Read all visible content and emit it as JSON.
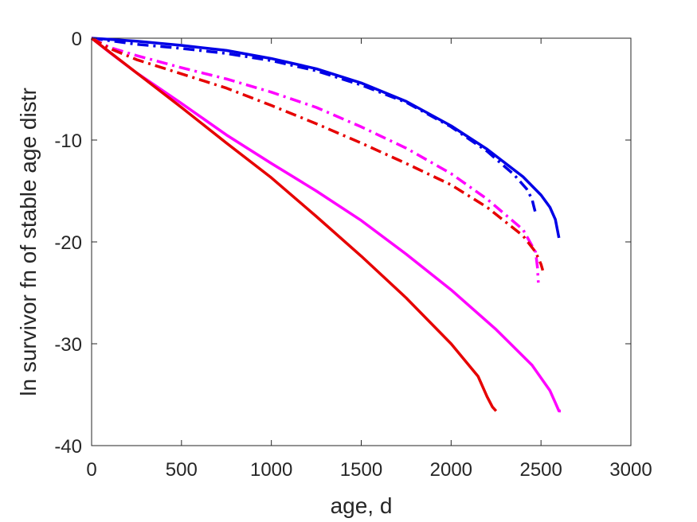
{
  "chart_data": {
    "type": "line",
    "title": "",
    "xlabel": "age, d",
    "ylabel": "ln survivor fn of stable age distr",
    "xlim": [
      0,
      3000
    ],
    "ylim": [
      -40,
      0
    ],
    "xticks": [
      0,
      500,
      1000,
      1500,
      2000,
      2500,
      3000
    ],
    "yticks": [
      0,
      -10,
      -20,
      -30,
      -40
    ],
    "xtick_labels": [
      "0",
      "500",
      "1000",
      "1500",
      "2000",
      "2500",
      "3000"
    ],
    "ytick_labels": [
      "0",
      "-10",
      "-20",
      "-30",
      "-40"
    ],
    "grid": false,
    "legend": "none",
    "series": [
      {
        "color": "#0000e6",
        "style": "solid",
        "x": [
          0,
          250,
          500,
          750,
          1000,
          1250,
          1500,
          1750,
          2000,
          2200,
          2400,
          2500,
          2550,
          2580,
          2600
        ],
        "y": [
          0,
          -0.3,
          -0.7,
          -1.2,
          -2.0,
          -3.0,
          -4.4,
          -6.2,
          -8.6,
          -10.9,
          -13.6,
          -15.4,
          -16.6,
          -17.8,
          -19.6
        ]
      },
      {
        "color": "#0000e6",
        "style": "dashdot",
        "x": [
          0,
          250,
          500,
          750,
          1000,
          1250,
          1500,
          1750,
          2000,
          2200,
          2350,
          2420,
          2450,
          2460,
          2470
        ],
        "y": [
          0,
          -0.6,
          -1.0,
          -1.5,
          -2.2,
          -3.2,
          -4.6,
          -6.3,
          -8.7,
          -11.1,
          -13.4,
          -14.8,
          -15.8,
          -16.5,
          -17.2
        ]
      },
      {
        "color": "#ff00ff",
        "style": "dashdot",
        "x": [
          0,
          100,
          250,
          500,
          750,
          1000,
          1250,
          1500,
          1750,
          2000,
          2200,
          2400,
          2470,
          2480,
          2485
        ],
        "y": [
          0,
          -0.9,
          -1.7,
          -2.9,
          -4.0,
          -5.3,
          -6.8,
          -8.7,
          -10.8,
          -13.3,
          -15.8,
          -18.8,
          -21.0,
          -22.5,
          -24.0
        ]
      },
      {
        "color": "#e60000",
        "style": "dashdot",
        "x": [
          0,
          100,
          250,
          500,
          750,
          1000,
          1250,
          1500,
          1750,
          2000,
          2200,
          2400,
          2470,
          2500,
          2510
        ],
        "y": [
          0,
          -1.0,
          -2.1,
          -3.5,
          -4.9,
          -6.6,
          -8.4,
          -10.3,
          -12.3,
          -14.4,
          -16.6,
          -19.4,
          -21.0,
          -22.2,
          -22.8
        ]
      },
      {
        "color": "#ff00ff",
        "style": "solid",
        "x": [
          0,
          100,
          250,
          500,
          750,
          1000,
          1250,
          1500,
          1750,
          2000,
          2250,
          2450,
          2550,
          2580,
          2600,
          2610
        ],
        "y": [
          0,
          -1.4,
          -3.4,
          -6.4,
          -9.5,
          -12.3,
          -15.0,
          -17.9,
          -21.2,
          -24.7,
          -28.6,
          -32.1,
          -34.6,
          -35.8,
          -36.6,
          -36.6
        ]
      },
      {
        "color": "#e60000",
        "style": "solid",
        "x": [
          0,
          250,
          500,
          750,
          1000,
          1250,
          1500,
          1750,
          2000,
          2150,
          2200,
          2230,
          2250
        ],
        "y": [
          0,
          -3.4,
          -6.8,
          -10.3,
          -13.7,
          -17.5,
          -21.4,
          -25.5,
          -30.0,
          -33.2,
          -35.2,
          -36.2,
          -36.6
        ]
      }
    ]
  }
}
